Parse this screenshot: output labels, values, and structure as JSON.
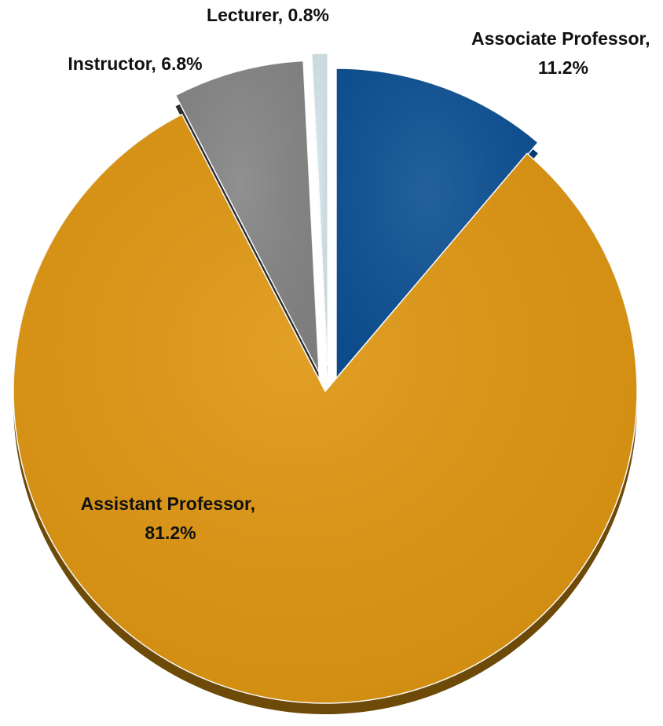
{
  "chart_data": {
    "type": "pie",
    "style": "3d-exploded",
    "categories": [
      "Associate Professor",
      "Assistant Professor",
      "Instructor",
      "Lecturer"
    ],
    "values": [
      11.2,
      81.2,
      6.8,
      0.8
    ],
    "unit": "%",
    "labels": [
      {
        "lines": [
          "Associate Professor,",
          "11.2%"
        ]
      },
      {
        "lines": [
          "Assistant Professor,",
          "81.2%"
        ]
      },
      {
        "lines": [
          "Instructor, 6.8%"
        ]
      },
      {
        "lines": [
          "Lecturer, 0.8%"
        ]
      }
    ],
    "colors": {
      "Associate Professor": "#0b4f93",
      "Assistant Professor": "#de950f",
      "Instructor": "#848484",
      "Lecturer": "#d3e3ea"
    },
    "side_colors": {
      "Associate Professor": "#073a6e",
      "Assistant Professor": "#6e4a08",
      "Instructor": "#2c2c2c",
      "Lecturer": "#9fb3bb"
    },
    "exploded": true,
    "start_angle_deg": 0,
    "direction": "clockwise"
  }
}
